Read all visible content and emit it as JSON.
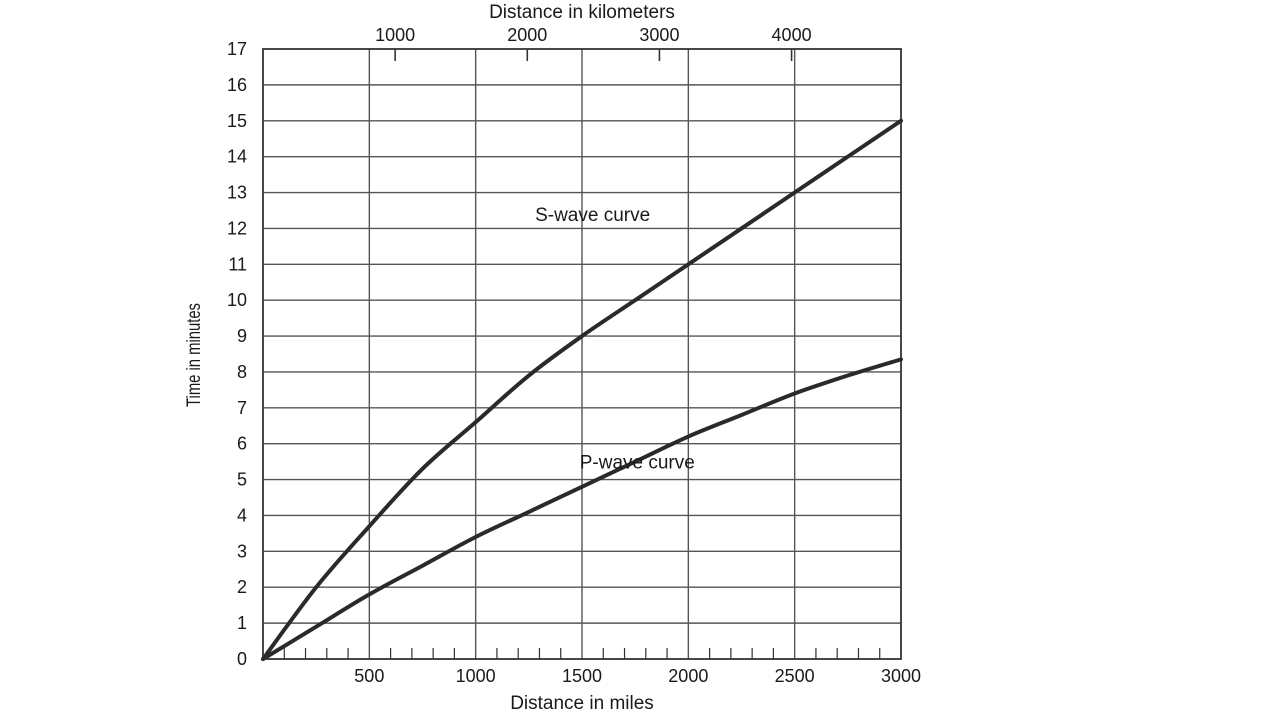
{
  "chart_data": {
    "type": "line",
    "xlabel": "Distance in miles",
    "x2label": "Distance in kilometers",
    "ylabel": "Time in minutes",
    "xlim": [
      0,
      3000
    ],
    "ylim": [
      0,
      17
    ],
    "grid": true,
    "x_ticks": [
      500,
      1000,
      1500,
      2000,
      2500,
      3000
    ],
    "x_tick_labels": [
      "500",
      "1000",
      "1500",
      "2000",
      "2500",
      "3000"
    ],
    "x2_ticks": [
      1000,
      2000,
      3000,
      4000
    ],
    "x2_tick_labels": [
      "1000",
      "2000",
      "3000",
      "4000"
    ],
    "y_ticks": [
      0,
      1,
      2,
      3,
      4,
      5,
      6,
      7,
      8,
      9,
      10,
      11,
      12,
      13,
      14,
      15,
      16,
      17
    ],
    "y_tick_labels": [
      "0",
      "1",
      "2",
      "3",
      "4",
      "5",
      "6",
      "7",
      "8",
      "9",
      "10",
      "11",
      "12",
      "13",
      "14",
      "15",
      "16",
      "17"
    ],
    "series": [
      {
        "name": "S-wave curve",
        "x": [
          0,
          250,
          500,
          750,
          1000,
          1250,
          1500,
          1750,
          2000,
          2250,
          2500,
          2750,
          3000
        ],
        "y": [
          0,
          2.0,
          3.7,
          5.3,
          6.6,
          7.9,
          9.0,
          10.0,
          11.0,
          12.0,
          13.0,
          14.0,
          15.0
        ]
      },
      {
        "name": "P-wave curve",
        "x": [
          0,
          250,
          500,
          750,
          1000,
          1250,
          1500,
          1750,
          2000,
          2250,
          2500,
          2750,
          3000
        ],
        "y": [
          0,
          0.9,
          1.8,
          2.6,
          3.4,
          4.1,
          4.8,
          5.5,
          6.2,
          6.8,
          7.4,
          7.9,
          8.35
        ]
      }
    ],
    "annotations": [
      {
        "text": "S-wave curve",
        "x": 1550,
        "y": 12.4
      },
      {
        "text": "P-wave curve",
        "x": 1760,
        "y": 5.5
      }
    ]
  }
}
